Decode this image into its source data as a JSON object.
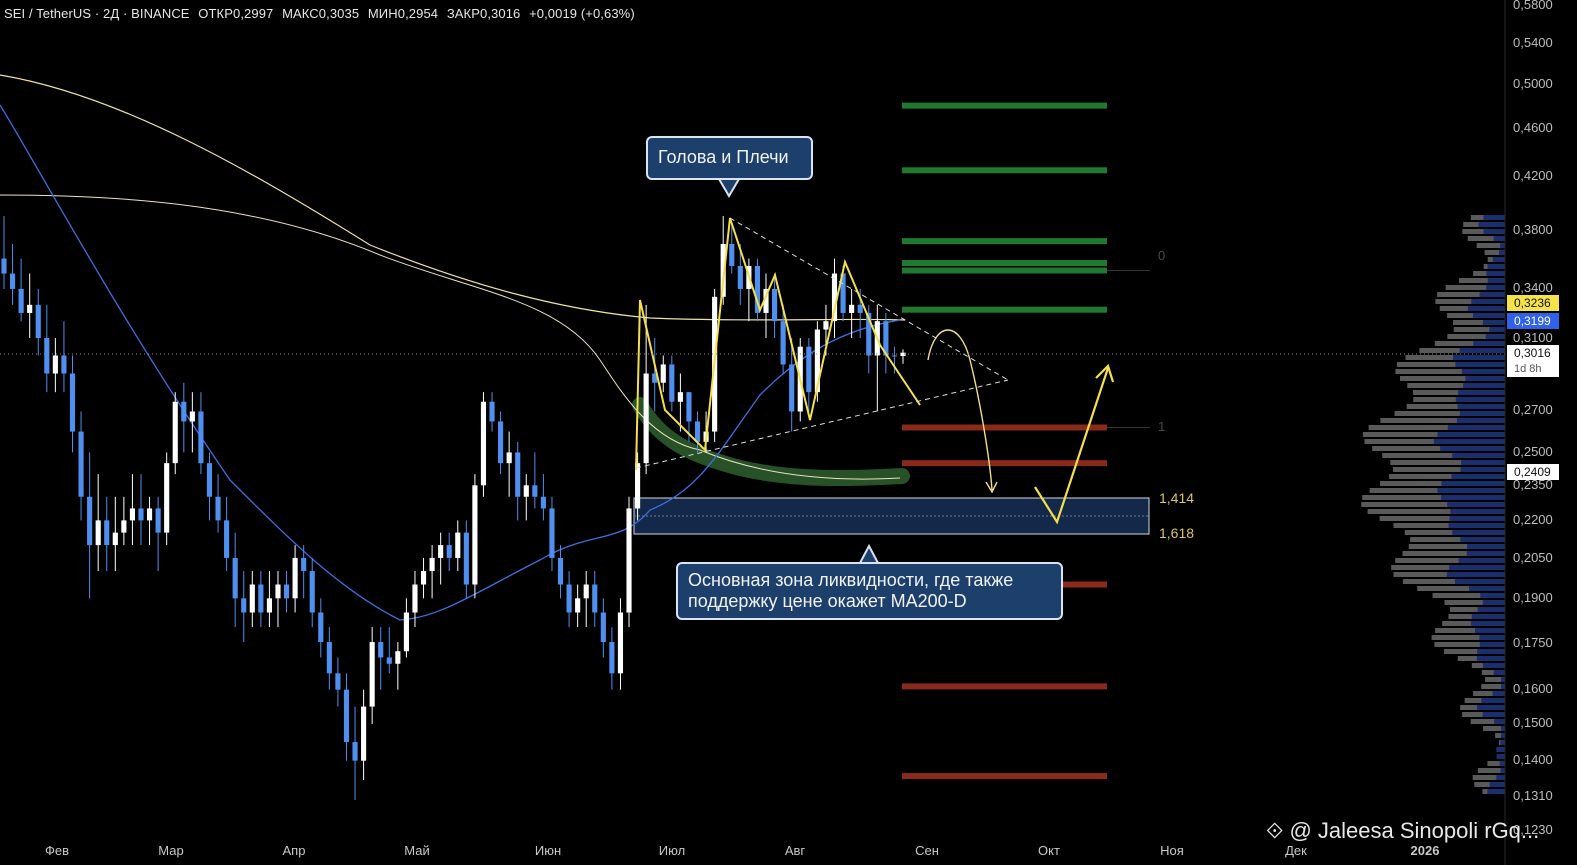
{
  "header": {
    "symbol": "SEI / TetherUS · 2Д · BINANCE",
    "open": "ОТКР0,2997",
    "high": "МАКС0,3035",
    "low": "МИН0,2954",
    "close": "ЗАКР0,3016",
    "change": "+0,0019 (+0,63%)"
  },
  "annotations": {
    "head_shoulders": "Голова и Плечи",
    "liquidity_line1": "Основная зона ликвидности, где также",
    "liquidity_line2": "поддержку цене окажет MA200-D",
    "fib_0": "0",
    "fib_1": "1",
    "fib_1414": "1,414",
    "fib_1618": "1,618"
  },
  "price_tags": {
    "ma_yellow": "0,3236",
    "ma_blue": "0,3199",
    "last": "0,3016",
    "countdown": "1d 8h",
    "support": "0,2409"
  },
  "watermark": "@ Jaleesa Sinopoli rGq...",
  "colors": {
    "bull": "#ffffff",
    "bear": "#4f8ff0",
    "ma_yellow": "#f5e9a8",
    "ma_blue": "#3d6fe0",
    "pattern": "#f4e04d",
    "fib_green": "#1f7a2f",
    "fib_red": "#8a2a1a"
  },
  "chart_data": {
    "type": "candlestick",
    "y_axis": {
      "ticks": [
        "0,5800",
        "0,5400",
        "0,5000",
        "0,4600",
        "0,4200",
        "0,3800",
        "0,3400",
        "0,3100",
        "0,2700",
        "0,2500",
        "0,2350",
        "0,2200",
        "0,2050",
        "0,1900",
        "0,1750",
        "0,1600",
        "0,1500",
        "0,1400",
        "0,1310",
        "0,1230"
      ],
      "scale": "log"
    },
    "x_axis": {
      "ticks": [
        "Фев",
        "Мар",
        "Апр",
        "Май",
        "Июн",
        "Июл",
        "Авг",
        "Сен",
        "Окт",
        "Ноя",
        "Дек",
        "2026"
      ]
    },
    "candles": [
      [
        0.36,
        0.39,
        0.34,
        0.35
      ],
      [
        0.35,
        0.37,
        0.33,
        0.34
      ],
      [
        0.34,
        0.36,
        0.32,
        0.325
      ],
      [
        0.325,
        0.35,
        0.31,
        0.33
      ],
      [
        0.33,
        0.34,
        0.3,
        0.31
      ],
      [
        0.31,
        0.33,
        0.28,
        0.29
      ],
      [
        0.29,
        0.31,
        0.28,
        0.3
      ],
      [
        0.3,
        0.32,
        0.28,
        0.29
      ],
      [
        0.29,
        0.3,
        0.25,
        0.26
      ],
      [
        0.26,
        0.27,
        0.22,
        0.23
      ],
      [
        0.23,
        0.25,
        0.19,
        0.21
      ],
      [
        0.21,
        0.24,
        0.2,
        0.22
      ],
      [
        0.22,
        0.23,
        0.2,
        0.21
      ],
      [
        0.21,
        0.23,
        0.2,
        0.215
      ],
      [
        0.215,
        0.23,
        0.21,
        0.22
      ],
      [
        0.22,
        0.24,
        0.21,
        0.225
      ],
      [
        0.225,
        0.24,
        0.21,
        0.22
      ],
      [
        0.22,
        0.23,
        0.21,
        0.225
      ],
      [
        0.225,
        0.23,
        0.2,
        0.215
      ],
      [
        0.215,
        0.25,
        0.21,
        0.245
      ],
      [
        0.245,
        0.28,
        0.24,
        0.275
      ],
      [
        0.275,
        0.285,
        0.25,
        0.265
      ],
      [
        0.265,
        0.28,
        0.25,
        0.27
      ],
      [
        0.27,
        0.28,
        0.24,
        0.245
      ],
      [
        0.245,
        0.25,
        0.22,
        0.23
      ],
      [
        0.23,
        0.24,
        0.215,
        0.22
      ],
      [
        0.22,
        0.23,
        0.2,
        0.205
      ],
      [
        0.205,
        0.215,
        0.18,
        0.19
      ],
      [
        0.19,
        0.2,
        0.175,
        0.185
      ],
      [
        0.185,
        0.2,
        0.18,
        0.195
      ],
      [
        0.195,
        0.2,
        0.18,
        0.185
      ],
      [
        0.185,
        0.2,
        0.18,
        0.19
      ],
      [
        0.19,
        0.2,
        0.18,
        0.195
      ],
      [
        0.195,
        0.2,
        0.185,
        0.19
      ],
      [
        0.19,
        0.21,
        0.185,
        0.205
      ],
      [
        0.205,
        0.21,
        0.19,
        0.2
      ],
      [
        0.2,
        0.205,
        0.18,
        0.185
      ],
      [
        0.185,
        0.19,
        0.17,
        0.175
      ],
      [
        0.175,
        0.18,
        0.16,
        0.165
      ],
      [
        0.165,
        0.17,
        0.155,
        0.16
      ],
      [
        0.16,
        0.165,
        0.14,
        0.145
      ],
      [
        0.145,
        0.155,
        0.13,
        0.14
      ],
      [
        0.14,
        0.16,
        0.135,
        0.155
      ],
      [
        0.155,
        0.18,
        0.15,
        0.175
      ],
      [
        0.175,
        0.18,
        0.16,
        0.17
      ],
      [
        0.17,
        0.18,
        0.165,
        0.168
      ],
      [
        0.168,
        0.175,
        0.16,
        0.172
      ],
      [
        0.172,
        0.19,
        0.17,
        0.185
      ],
      [
        0.185,
        0.2,
        0.18,
        0.195
      ],
      [
        0.195,
        0.205,
        0.19,
        0.2
      ],
      [
        0.2,
        0.21,
        0.19,
        0.205
      ],
      [
        0.205,
        0.215,
        0.195,
        0.21
      ],
      [
        0.21,
        0.215,
        0.2,
        0.205
      ],
      [
        0.205,
        0.22,
        0.2,
        0.215
      ],
      [
        0.215,
        0.22,
        0.19,
        0.195
      ],
      [
        0.195,
        0.24,
        0.19,
        0.235
      ],
      [
        0.235,
        0.28,
        0.23,
        0.275
      ],
      [
        0.275,
        0.28,
        0.26,
        0.265
      ],
      [
        0.265,
        0.27,
        0.24,
        0.245
      ],
      [
        0.245,
        0.26,
        0.23,
        0.25
      ],
      [
        0.25,
        0.255,
        0.22,
        0.23
      ],
      [
        0.23,
        0.24,
        0.22,
        0.235
      ],
      [
        0.235,
        0.25,
        0.225,
        0.23
      ],
      [
        0.23,
        0.24,
        0.22,
        0.225
      ],
      [
        0.225,
        0.23,
        0.2,
        0.205
      ],
      [
        0.205,
        0.21,
        0.19,
        0.195
      ],
      [
        0.195,
        0.2,
        0.18,
        0.185
      ],
      [
        0.185,
        0.195,
        0.18,
        0.19
      ],
      [
        0.19,
        0.2,
        0.18,
        0.195
      ],
      [
        0.195,
        0.2,
        0.18,
        0.185
      ],
      [
        0.185,
        0.19,
        0.17,
        0.175
      ],
      [
        0.175,
        0.18,
        0.16,
        0.165
      ],
      [
        0.165,
        0.19,
        0.16,
        0.185
      ],
      [
        0.185,
        0.23,
        0.18,
        0.225
      ],
      [
        0.225,
        0.25,
        0.22,
        0.245
      ],
      [
        0.245,
        0.33,
        0.24,
        0.29
      ],
      [
        0.29,
        0.31,
        0.27,
        0.285
      ],
      [
        0.285,
        0.3,
        0.28,
        0.295
      ],
      [
        0.295,
        0.3,
        0.27,
        0.275
      ],
      [
        0.275,
        0.29,
        0.26,
        0.28
      ],
      [
        0.28,
        0.28,
        0.255,
        0.265
      ],
      [
        0.265,
        0.27,
        0.25,
        0.255
      ],
      [
        0.255,
        0.27,
        0.25,
        0.26
      ],
      [
        0.26,
        0.34,
        0.255,
        0.335
      ],
      [
        0.335,
        0.39,
        0.33,
        0.37
      ],
      [
        0.37,
        0.385,
        0.35,
        0.355
      ],
      [
        0.355,
        0.37,
        0.33,
        0.34
      ],
      [
        0.34,
        0.36,
        0.32,
        0.355
      ],
      [
        0.355,
        0.36,
        0.32,
        0.325
      ],
      [
        0.325,
        0.35,
        0.31,
        0.34
      ],
      [
        0.34,
        0.35,
        0.31,
        0.32
      ],
      [
        0.32,
        0.33,
        0.29,
        0.295
      ],
      [
        0.295,
        0.31,
        0.26,
        0.27
      ],
      [
        0.27,
        0.31,
        0.265,
        0.305
      ],
      [
        0.305,
        0.31,
        0.27,
        0.28
      ],
      [
        0.28,
        0.32,
        0.275,
        0.315
      ],
      [
        0.315,
        0.33,
        0.3,
        0.32
      ],
      [
        0.32,
        0.36,
        0.31,
        0.35
      ],
      [
        0.35,
        0.355,
        0.32,
        0.325
      ],
      [
        0.325,
        0.34,
        0.31,
        0.33
      ],
      [
        0.33,
        0.34,
        0.31,
        0.325
      ],
      [
        0.325,
        0.33,
        0.29,
        0.3
      ],
      [
        0.3,
        0.33,
        0.27,
        0.32
      ],
      [
        0.32,
        0.325,
        0.29,
        0.3
      ],
      [
        0.3,
        0.305,
        0.29,
        0.2997
      ],
      [
        0.2997,
        0.3035,
        0.2954,
        0.3016
      ]
    ],
    "ma_yellow_label": "0,3236",
    "ma_blue_label": "0,3199",
    "fib_levels": [
      {
        "label": "0",
        "value": 0.352
      },
      {
        "label": "1",
        "value": 0.262
      },
      {
        "label": "1,414",
        "value": 0.229
      },
      {
        "label": "1,618",
        "value": 0.215
      }
    ],
    "green_levels": [
      0.48,
      0.425,
      0.372,
      0.357,
      0.352,
      0.327
    ],
    "red_levels": [
      0.262,
      0.245,
      0.195,
      0.161,
      0.136
    ]
  }
}
